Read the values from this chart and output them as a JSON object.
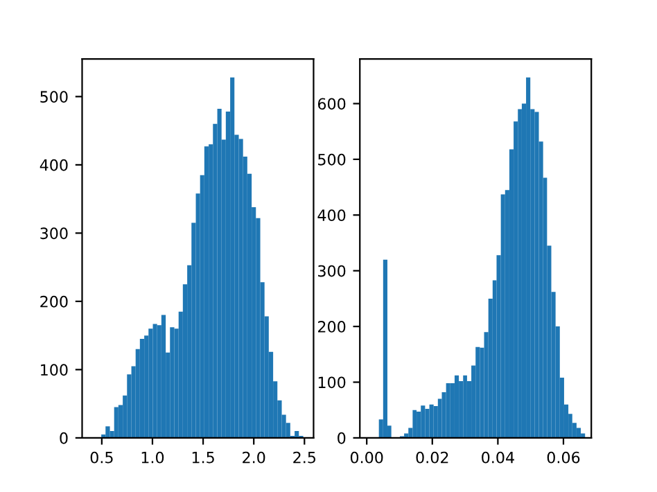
{
  "chart_data": [
    {
      "type": "histogram",
      "color": "#1f77b4",
      "bins": [
        0.41,
        0.452,
        0.495,
        0.537,
        0.58,
        0.622,
        0.664,
        0.707,
        0.749,
        0.792,
        0.834,
        0.876,
        0.919,
        0.961,
        1.004,
        1.046,
        1.088,
        1.131,
        1.173,
        1.216,
        1.258,
        1.3,
        1.343,
        1.385,
        1.428,
        1.47,
        1.512,
        1.555,
        1.597,
        1.64,
        1.682,
        1.724,
        1.767,
        1.809,
        1.852,
        1.894,
        1.936,
        1.979,
        2.021,
        2.064,
        2.106,
        2.148,
        2.191,
        2.233,
        2.276,
        2.318,
        2.36,
        2.403,
        2.445,
        2.488,
        2.53
      ],
      "values": [
        1,
        null,
        5,
        17,
        10,
        45,
        48,
        62,
        93,
        105,
        130,
        145,
        150,
        160,
        167,
        165,
        180,
        125,
        162,
        160,
        185,
        225,
        253,
        315,
        358,
        385,
        427,
        430,
        460,
        482,
        437,
        478,
        528,
        444,
        438,
        412,
        387,
        338,
        322,
        228,
        178,
        126,
        83,
        55,
        34,
        22,
        3,
        10,
        3,
        1
      ],
      "xlim": [
        0.306,
        2.59
      ],
      "xticks": [
        {
          "value": 0.5,
          "label": "0.5"
        },
        {
          "value": 1.0,
          "label": "1.0"
        },
        {
          "value": 1.5,
          "label": "1.5"
        },
        {
          "value": 2.0,
          "label": "2.0"
        },
        {
          "value": 2.5,
          "label": "2.5"
        }
      ],
      "ylim": [
        0,
        555
      ],
      "yticks": [
        0,
        100,
        200,
        300,
        400,
        500
      ]
    },
    {
      "type": "histogram",
      "color": "#1f77b4",
      "bins": [
        0.0024,
        0.0037,
        0.005,
        0.0063,
        0.0075,
        0.0088,
        0.0101,
        0.0114,
        0.0127,
        0.014,
        0.0152,
        0.0165,
        0.0178,
        0.0191,
        0.0204,
        0.0217,
        0.0229,
        0.0242,
        0.0255,
        0.0268,
        0.0281,
        0.0294,
        0.0306,
        0.0319,
        0.0332,
        0.0345,
        0.0358,
        0.0371,
        0.0384,
        0.0396,
        0.0409,
        0.0422,
        0.0435,
        0.0448,
        0.0461,
        0.0473,
        0.0486,
        0.0499,
        0.0512,
        0.0525,
        0.0538,
        0.055,
        0.0563,
        0.0576,
        0.0589,
        0.0602,
        0.0615,
        0.0627,
        0.064,
        0.0653,
        0.0666
      ],
      "values": [
        0,
        33,
        320,
        22,
        null,
        0,
        3,
        8,
        18,
        50,
        47,
        58,
        52,
        60,
        57,
        70,
        82,
        98,
        98,
        112,
        102,
        112,
        102,
        130,
        163,
        162,
        190,
        250,
        283,
        328,
        437,
        445,
        518,
        568,
        590,
        600,
        647,
        590,
        585,
        532,
        467,
        345,
        262,
        200,
        108,
        60,
        43,
        27,
        18,
        8
      ],
      "xlim": [
        -0.0021,
        0.0685
      ],
      "xticks": [
        {
          "value": 0,
          "label": "0.00"
        },
        {
          "value": 0.02,
          "label": "0.02"
        },
        {
          "value": 0.04,
          "label": "0.04"
        },
        {
          "value": 0.06,
          "label": "0.06"
        }
      ],
      "ylim": [
        0,
        680
      ],
      "yticks": [
        0,
        100,
        200,
        300,
        400,
        500,
        600
      ]
    }
  ]
}
